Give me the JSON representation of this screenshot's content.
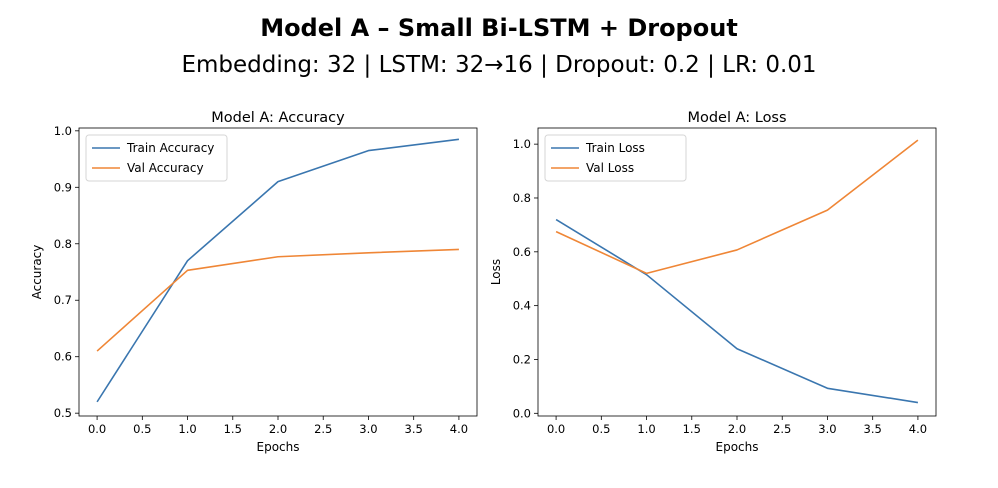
{
  "header": {
    "title": "Model A – Small Bi-LSTM + Dropout",
    "subtitle": "Embedding: 32 | LSTM: 32→16 | Dropout: 0.2 | LR: 0.01"
  },
  "colors": {
    "train": "#3a76af",
    "val": "#ef8636"
  },
  "chart_data": [
    {
      "type": "line",
      "title": "Model A: Accuracy",
      "xlabel": "Epochs",
      "ylabel": "Accuracy",
      "x": [
        0,
        1,
        2,
        3,
        4
      ],
      "xlim": [
        -0.2,
        4.2
      ],
      "ylim": [
        0.495,
        1.005
      ],
      "xticks": [
        0.0,
        0.5,
        1.0,
        1.5,
        2.0,
        2.5,
        3.0,
        3.5,
        4.0
      ],
      "xtick_labels": [
        "0.0",
        "0.5",
        "1.0",
        "1.5",
        "2.0",
        "2.5",
        "3.0",
        "3.5",
        "4.0"
      ],
      "yticks": [
        0.5,
        0.6,
        0.7,
        0.8,
        0.9,
        1.0
      ],
      "ytick_labels": [
        "0.5",
        "0.6",
        "0.7",
        "0.8",
        "0.9",
        "1.0"
      ],
      "legend": "upper-left",
      "grid": false,
      "series": [
        {
          "name": "Train Accuracy",
          "values": [
            0.52,
            0.77,
            0.91,
            0.965,
            0.985
          ]
        },
        {
          "name": "Val Accuracy",
          "values": [
            0.61,
            0.753,
            0.777,
            0.784,
            0.79
          ]
        }
      ]
    },
    {
      "type": "line",
      "title": "Model A: Loss",
      "xlabel": "Epochs",
      "ylabel": "Loss",
      "x": [
        0,
        1,
        2,
        3,
        4
      ],
      "xlim": [
        -0.2,
        4.2
      ],
      "ylim": [
        -0.01,
        1.06
      ],
      "xticks": [
        0.0,
        0.5,
        1.0,
        1.5,
        2.0,
        2.5,
        3.0,
        3.5,
        4.0
      ],
      "xtick_labels": [
        "0.0",
        "0.5",
        "1.0",
        "1.5",
        "2.0",
        "2.5",
        "3.0",
        "3.5",
        "4.0"
      ],
      "yticks": [
        0.0,
        0.2,
        0.4,
        0.6,
        0.8,
        1.0
      ],
      "ytick_labels": [
        "0.0",
        "0.2",
        "0.4",
        "0.6",
        "0.8",
        "1.0"
      ],
      "legend": "upper-left",
      "grid": false,
      "series": [
        {
          "name": "Train Loss",
          "values": [
            0.72,
            0.515,
            0.24,
            0.093,
            0.04
          ]
        },
        {
          "name": "Val Loss",
          "values": [
            0.675,
            0.52,
            0.607,
            0.755,
            1.015
          ]
        }
      ]
    }
  ]
}
